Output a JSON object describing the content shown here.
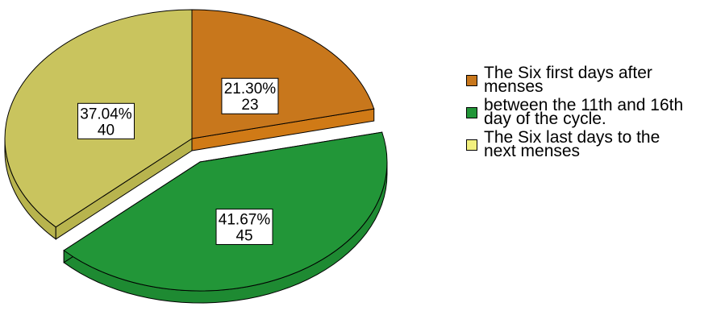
{
  "chart_data": {
    "type": "pie",
    "style": "3d-exploded",
    "slices": [
      {
        "label": "The Six first days after menses",
        "percent": "21.30%",
        "count": "23",
        "value": 23,
        "color": "#c8771c",
        "side_color": "#d07a16"
      },
      {
        "label": "between the 11th and 16th day of the cycle.",
        "percent": "41.67%",
        "count": "45",
        "value": 45,
        "color": "#229638",
        "side_color": "#1e8a32",
        "exploded": true
      },
      {
        "label": "The Six last days to the next menses",
        "percent": "37.04%",
        "count": "40",
        "value": 40,
        "color": "#c9c45e",
        "side_color": "#b8b44e"
      }
    ]
  },
  "legend": {
    "items": [
      {
        "line1": "The Six first days after",
        "line2": "menses",
        "color": "#c8771c"
      },
      {
        "line1": "between the 11th and 16th",
        "line2": "day of the cycle.",
        "color": "#229638"
      },
      {
        "line1": "The Six last days to the",
        "line2": "next menses",
        "color": "#f2f07e"
      }
    ]
  }
}
